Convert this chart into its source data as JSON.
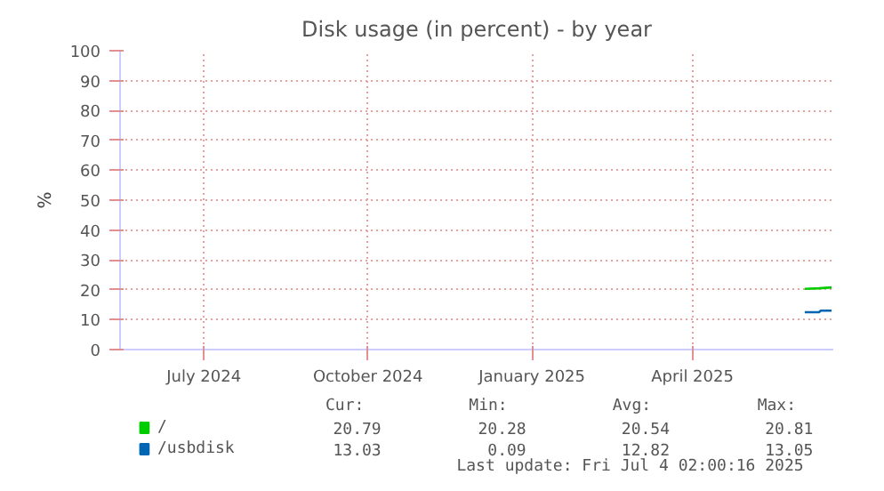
{
  "chart_data": {
    "type": "line",
    "title": "Disk usage (in percent) - by year",
    "ylabel": "%",
    "xlim": [
      "2024-05-30",
      "2025-07-04"
    ],
    "ylim": [
      0,
      100
    ],
    "xticks": [
      {
        "value": "2024-07-16",
        "label": "July 2024"
      },
      {
        "value": "2024-10-16",
        "label": "October 2024"
      },
      {
        "value": "2025-01-16",
        "label": "January 2025"
      },
      {
        "value": "2025-04-16",
        "label": "April 2025"
      }
    ],
    "yticks": [
      0,
      10,
      20,
      30,
      40,
      50,
      60,
      70,
      80,
      90,
      100
    ],
    "grid": true,
    "legend": "bottom",
    "series": [
      {
        "name": "/",
        "color": "#00cc00",
        "x": [
          "2025-06-18",
          "2025-06-26",
          "2025-07-03"
        ],
        "values": [
          20.3,
          20.5,
          20.8
        ]
      },
      {
        "name": "/usbdisk",
        "color": "#0066b3",
        "x": [
          "2025-06-18",
          "2025-06-26",
          "2025-06-27",
          "2025-07-03"
        ],
        "values": [
          12.5,
          12.5,
          13.0,
          13.0
        ]
      }
    ],
    "annotations": [
      "Cur:",
      "Min:",
      "Avg:",
      "Max:",
      "20.79",
      "20.28",
      "20.54",
      "20.81",
      "13.03",
      "0.09",
      "12.82",
      "13.05",
      "Last update: Fri Jul  4 02:00:16 2025"
    ]
  }
}
